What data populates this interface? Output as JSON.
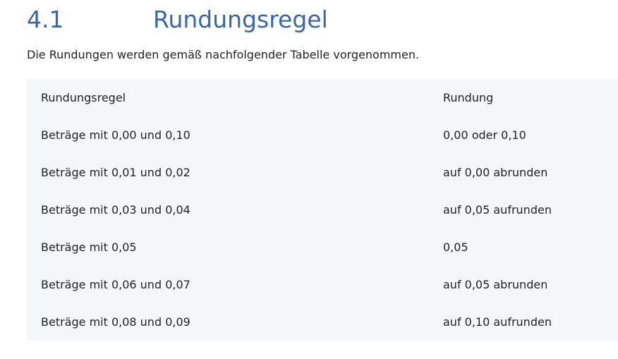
{
  "heading": {
    "number": "4.1",
    "title": "Rundungsregel"
  },
  "intro": "Die Rundungen werden gemäß nachfolgender Tabelle vorgenommen.",
  "table": {
    "headers": [
      "Rundungsregel",
      "Rundung"
    ],
    "rows": [
      [
        "Beträge mit 0,00 und 0,10",
        "0,00 oder 0,10"
      ],
      [
        "Beträge mit 0,01 und 0,02",
        "auf 0,00 abrunden"
      ],
      [
        "Beträge mit 0,03 und 0,04",
        "auf 0,05 aufrunden"
      ],
      [
        "Beträge mit 0,05",
        "0,05"
      ],
      [
        "Beträge mit 0,06 und 0,07",
        "auf 0,05 abrunden"
      ],
      [
        "Beträge mit 0,08 und 0,09",
        "auf 0,10 aufrunden"
      ]
    ]
  },
  "colors": {
    "heading": "#3a65a6",
    "table_bg": "#f4f7fa",
    "text": "#222222"
  }
}
